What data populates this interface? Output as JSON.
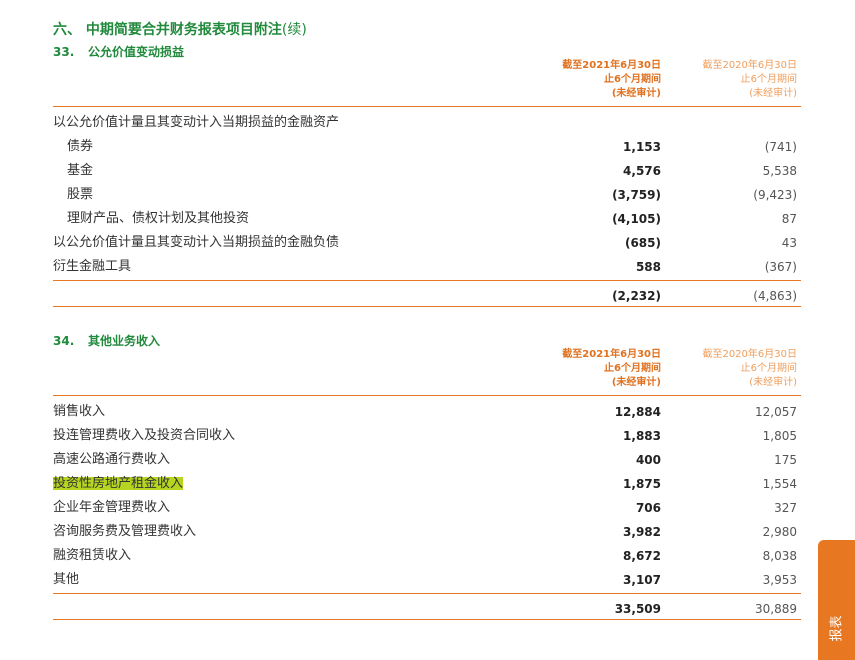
{
  "header": {
    "title": "六、 中期简要合并财务报表项目附注",
    "title_suffix": "(续)"
  },
  "columns": [
    {
      "line1": "截至2021年6月30日",
      "line2": "止6个月期间",
      "line3": "(未经审计)"
    },
    {
      "line1": "截至2020年6月30日",
      "line2": "止6个月期间",
      "line3": "(未经审计)"
    }
  ],
  "sections": [
    {
      "number": "33.",
      "title": "公允价值变动损益",
      "rows": [
        {
          "label": "以公允价值计量且其变动计入当期损益的金融资产",
          "rows": [
            {
              "label": "债券",
              "current": "1,153",
              "prior": "(741)"
            },
            {
              "label": "基金",
              "current": "4,576",
              "prior": "5,538"
            },
            {
              "label": "股票",
              "current": "(3,759)",
              "prior": "(9,423)"
            },
            {
              "label": "理财产品、债权计划及其他投资",
              "current": "(4,105)",
              "prior": "87"
            }
          ]
        },
        {
          "label": "以公允价值计量且其变动计入当期损益的金融负债",
          "current": "(685)",
          "prior": "43"
        },
        {
          "label": "衍生金融工具",
          "current": "588",
          "prior": "(367)"
        }
      ],
      "total": {
        "current": "(2,232)",
        "prior": "(4,863)"
      }
    },
    {
      "number": "34.",
      "title": "其他业务收入",
      "rows": [
        {
          "label": "销售收入",
          "current": "12,884",
          "prior": "12,057"
        },
        {
          "label": "投连管理费收入及投资合同收入",
          "current": "1,883",
          "prior": "1,805"
        },
        {
          "label": "高速公路通行费收入",
          "current": "400",
          "prior": "175"
        },
        {
          "label": "投资性房地产租金收入",
          "current": "1,875",
          "prior": "1,554",
          "highlight": true
        },
        {
          "label": "企业年金管理费收入",
          "current": "706",
          "prior": "327"
        },
        {
          "label": "咨询服务费及管理费收入",
          "current": "3,982",
          "prior": "2,980"
        },
        {
          "label": "融资租赁收入",
          "current": "8,672",
          "prior": "8,038"
        },
        {
          "label": "其他",
          "current": "3,107",
          "prior": "3,953"
        }
      ],
      "total": {
        "current": "33,509",
        "prior": "30,889"
      }
    }
  ],
  "side_tab": "报表"
}
